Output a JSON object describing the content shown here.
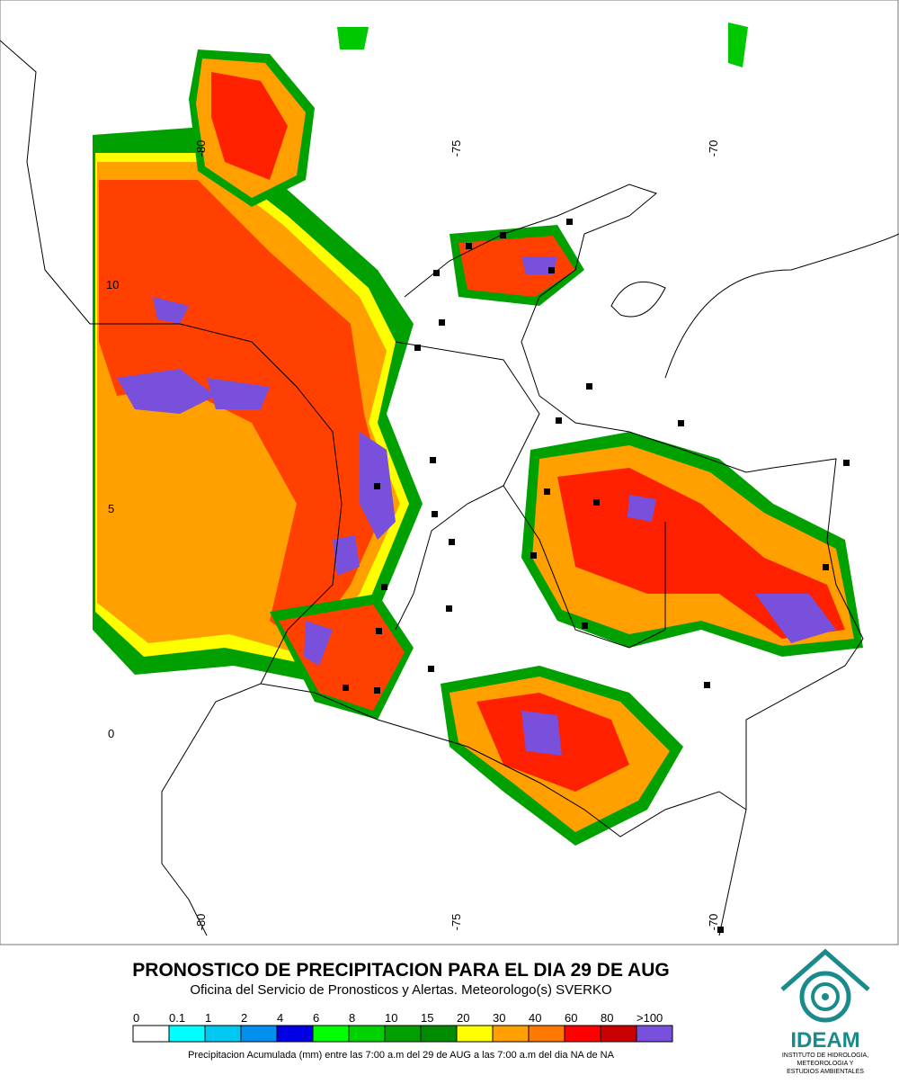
{
  "map": {
    "lon_labels_top": [
      "-80",
      "-75",
      "-70"
    ],
    "lon_labels_bottom": [
      "-80",
      "-75",
      "-70"
    ],
    "lat_labels": [
      "10",
      "5",
      "0"
    ]
  },
  "header": {
    "title": "PRONOSTICO DE PRECIPITACION PARA EL DIA 29 DE AUG",
    "subtitle": "Oficina del Servicio de Pronosticos y Alertas. Meteorologo(s) SVERKO"
  },
  "legend": {
    "labels": [
      "0",
      "0.1",
      "1",
      "2",
      "4",
      "6",
      "8",
      "10",
      "15",
      "20",
      "30",
      "40",
      "60",
      "80",
      ">100"
    ],
    "colors": [
      "#ffffff",
      "#00ffff",
      "#00c8f0",
      "#0090f0",
      "#0000e6",
      "#00ff00",
      "#00d200",
      "#00a000",
      "#008c00",
      "#ffff00",
      "#ffa000",
      "#ff7800",
      "#ff0000",
      "#c80000",
      "#7850dc"
    ],
    "caption": "Precipitacion Acumulada (mm) entre las 7:00 a.m del 29 de AUG a las 7:00 a.m del dia NA de NA"
  },
  "logo": {
    "name": "IDEAM",
    "line1": "INSTITUTO DE HIDROLOGIA,",
    "line2": "METEOROLOGIA Y",
    "line3": "ESTUDIOS AMBIENTALES"
  }
}
